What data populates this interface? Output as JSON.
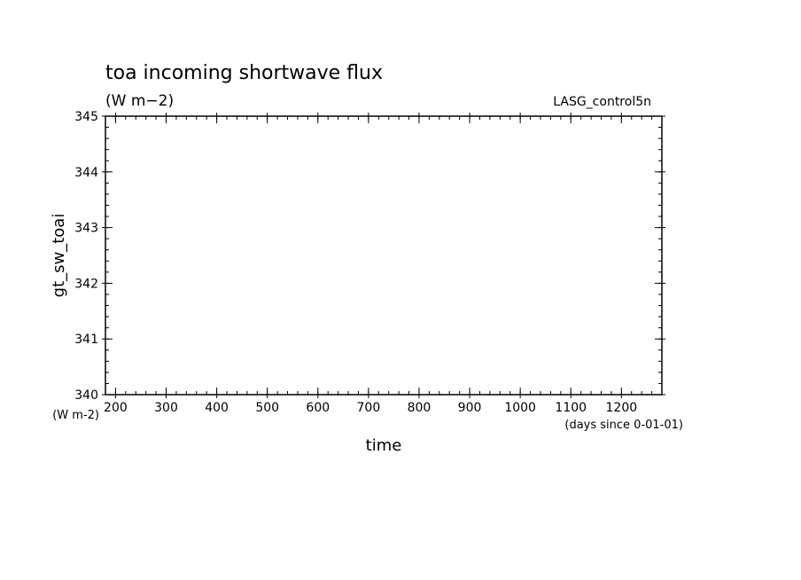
{
  "chart_data": {
    "type": "line",
    "title": "toa incoming shortwave flux",
    "subtitle": "(W m−2)",
    "model_label": "LASG_control5n",
    "xlabel": "time",
    "xunit": "(days since 0-01-01)",
    "ylabel": "gt_sw_toai",
    "yunit": "(W m-2)",
    "xlim": [
      180,
      1280
    ],
    "ylim": [
      340,
      345
    ],
    "xticks": [
      200,
      300,
      400,
      500,
      600,
      700,
      800,
      900,
      1000,
      1100,
      1200
    ],
    "yticks": [
      340,
      341,
      342,
      343,
      344,
      345
    ],
    "grid": false,
    "series": []
  }
}
